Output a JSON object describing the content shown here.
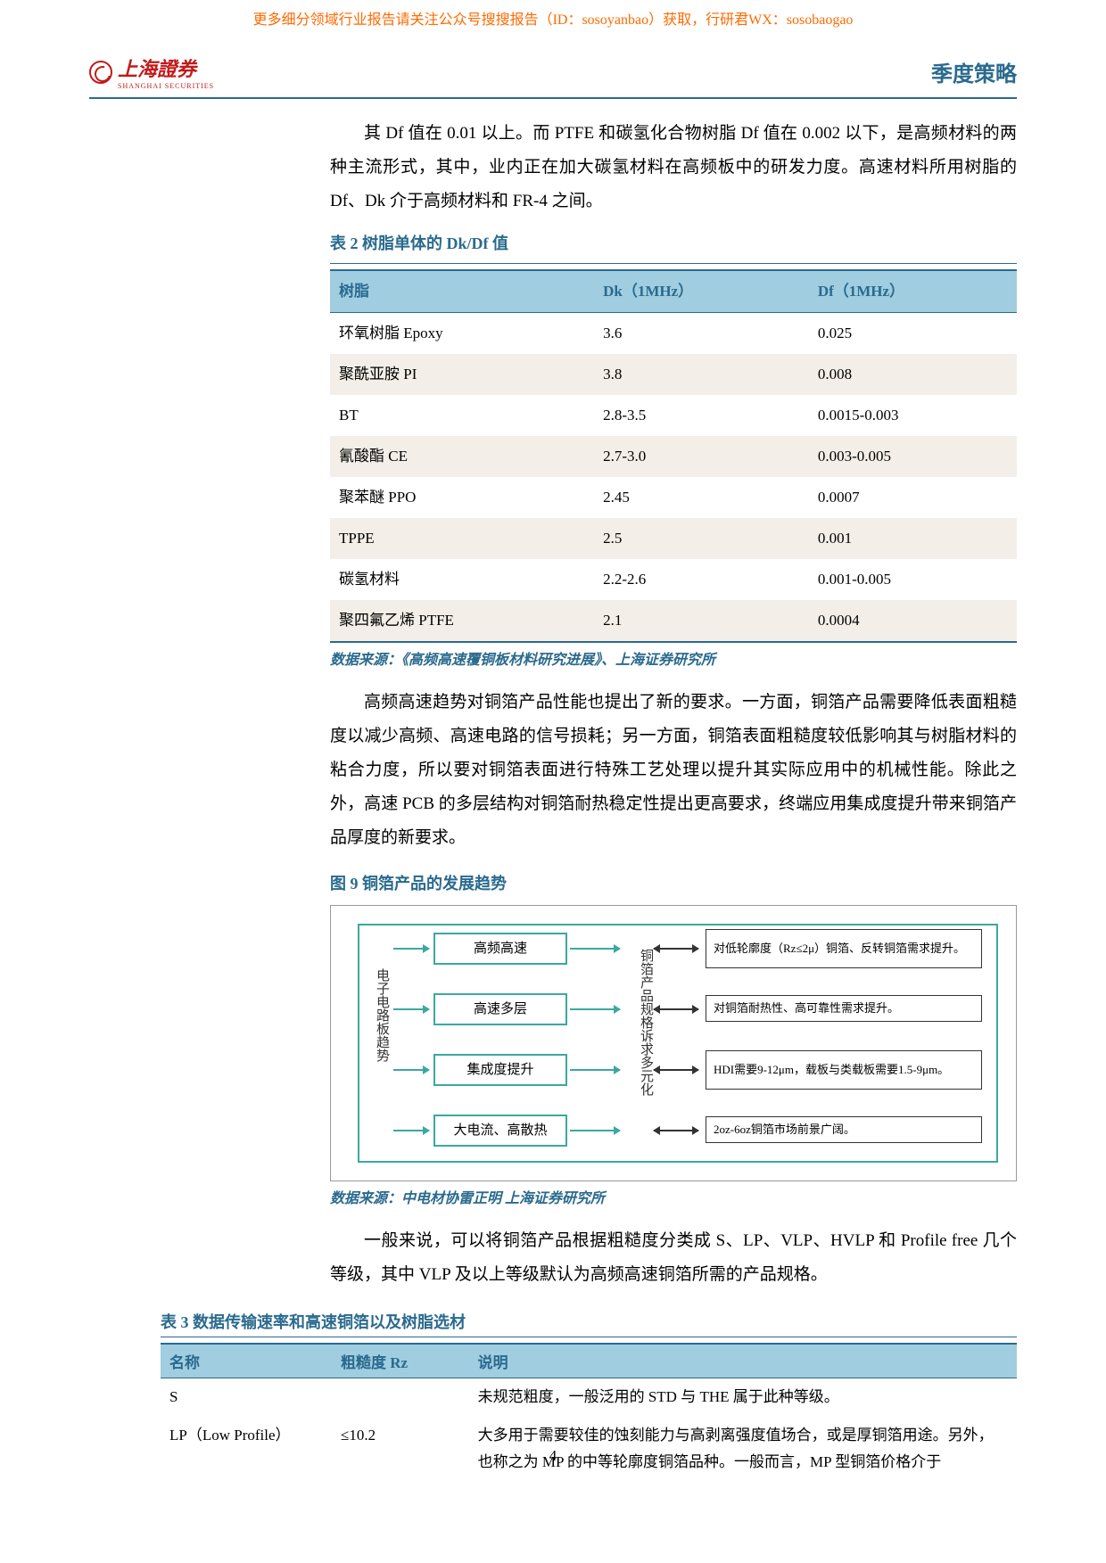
{
  "top_banner": {
    "text": "更多细分领域行业报告请关注公众号搜搜报告（ID：sosoyanbao）获取，行研君WX：sosobaogao",
    "color": "#ff6a00"
  },
  "header": {
    "logo_text": "上海證券",
    "logo_sub": "SHANGHAI SECURITIES",
    "title": "季度策略",
    "accent": "#2a6a8e",
    "logo_color": "#c21a1a"
  },
  "para1": "其 Df 值在 0.01 以上。而 PTFE 和碳氢化合物树脂 Df 值在 0.002 以下，是高频材料的两种主流形式，其中，业内正在加大碳氢材料在高频板中的研发力度。高速材料所用树脂的 Df、Dk 介于高频材料和 FR-4 之间。",
  "table2": {
    "caption": "表 2  树脂单体的 Dk/Df 值",
    "columns": [
      "树脂",
      "Dk（1MHz）",
      "Df（1MHz）"
    ],
    "rows": [
      [
        "环氧树脂 Epoxy",
        "3.6",
        "0.025"
      ],
      [
        "聚酰亚胺 PI",
        "3.8",
        "0.008"
      ],
      [
        "BT",
        "2.8-3.5",
        "0.0015-0.003"
      ],
      [
        "氰酸酯 CE",
        "2.7-3.0",
        "0.003-0.005"
      ],
      [
        "聚苯醚 PPO",
        "2.45",
        "0.0007"
      ],
      [
        "TPPE",
        "2.5",
        "0.001"
      ],
      [
        "碳氢材料",
        "2.2-2.6",
        "0.001-0.005"
      ],
      [
        "聚四氟乙烯 PTFE",
        "2.1",
        "0.0004"
      ]
    ],
    "stripe_indices": [
      1,
      3,
      5,
      7
    ],
    "source": "数据来源：《高频高速覆铜板材料研究进展》、上海证券研究所"
  },
  "para2": "高频高速趋势对铜箔产品性能也提出了新的要求。一方面，铜箔产品需要降低表面粗糙度以减少高频、高速电路的信号损耗；另一方面，铜箔表面粗糙度较低影响其与树脂材料的粘合力度，所以要对铜箔表面进行特殊工艺处理以提升其实际应用中的机械性能。除此之外，高速 PCB 的多层结构对铜箔耐热稳定性提出更高要求，终端应用集成度提升带来铜箔产品厚度的新要求。",
  "figure9": {
    "caption": "图 9 铜箔产品的发展趋势",
    "left_vlabel": "电子电路板趋势",
    "mid_vlabel": "铜箔产品规格诉求多元化",
    "left_boxes": [
      "高频高速",
      "高速多层",
      "集成度提升",
      "大电流、高散热"
    ],
    "right_boxes": [
      "对低轮廓度（Rz≤2μ）铜箔、反转铜箔需求提升。",
      "对铜箔耐热性、高可靠性需求提升。",
      "HDI需要9-12μm，载板与类载板需要1.5-9μm。",
      "2oz-6oz铜箔市场前景广阔。"
    ],
    "source": "数据来源：中电材协雷正明 上海证券研究所",
    "node_border": "#3ba8a0"
  },
  "para3": "一般来说，可以将铜箔产品根据粗糙度分类成 S、LP、VLP、HVLP 和 Profile free 几个等级，其中 VLP 及以上等级默认为高频高速铜箔所需的产品规格。",
  "table3": {
    "caption": "表 3 数据传输速率和高速铜箔以及树脂选材",
    "columns": [
      "名称",
      "粗糙度 Rz",
      "说明"
    ],
    "rows": [
      [
        "S",
        "",
        "未规范粗度，一般泛用的 STD 与 THE 属于此种等级。"
      ],
      [
        "LP（Low Profile）",
        "≤10.2",
        "大多用于需要较佳的蚀刻能力与高剥离强度值场合，或是厚铜箔用途。另外，也称之为 MP 的中等轮廓度铜箔品种。一般而言，MP 型铜箔价格介于"
      ]
    ],
    "col_widths": [
      "20%",
      "16%",
      "64%"
    ]
  },
  "page_number": "4"
}
